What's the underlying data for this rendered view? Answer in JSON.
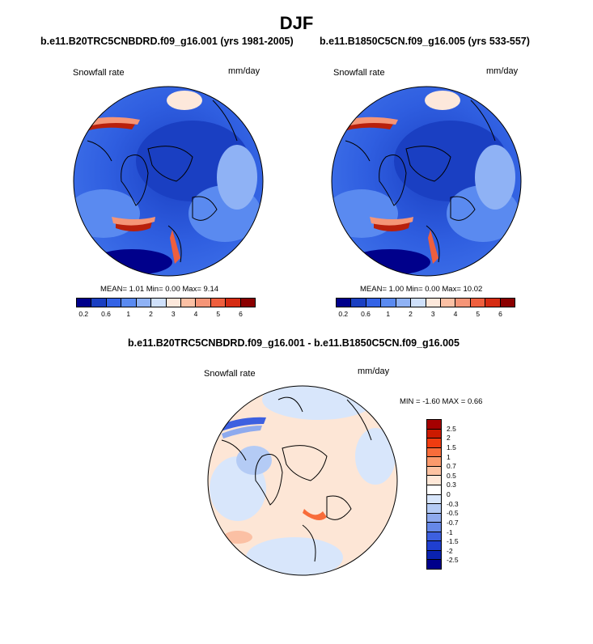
{
  "title": "DJF",
  "panels": [
    {
      "title": "b.e11.B20TRC5CNBDRD.f09_g16.001 (yrs 1981-2005)",
      "var_label": "Snowfall rate",
      "units": "mm/day",
      "stats": "MEAN=   1.01  Min=   0.00  Max=   9.14"
    },
    {
      "title": "b.e11.B1850C5CN.f09_g16.005 (yrs 533-557)",
      "var_label": "Snowfall rate",
      "units": "mm/day",
      "stats": "MEAN=   1.00  Min=   0.00  Max=   10.02"
    }
  ],
  "diff": {
    "title": "b.e11.B20TRC5CNBDRD.f09_g16.001 - b.e11.B1850C5CN.f09_g16.005",
    "var_label": "Snowfall rate",
    "units": "mm/day",
    "stats": "MIN =  -1.60 MAX =   0.66"
  },
  "colorbar": {
    "colors": [
      "#00008b",
      "#1a3fc2",
      "#3463e6",
      "#5a8af0",
      "#8fb2f5",
      "#cfe0fb",
      "#fde8db",
      "#fbc0a4",
      "#f59577",
      "#ef5f3e",
      "#d52b12",
      "#8b0000"
    ],
    "ticks": [
      "0.2",
      "0.6",
      "1",
      "2",
      "3",
      "4",
      "5",
      "6"
    ]
  },
  "diff_colorbar": {
    "colors": [
      "#a50000",
      "#cc1a00",
      "#f03c10",
      "#f86c3a",
      "#fb9a6c",
      "#fdc3a2",
      "#ffe8d8",
      "#ffffff",
      "#d8e6fb",
      "#b4cbf5",
      "#8eaaee",
      "#6688e8",
      "#3d60e0",
      "#1f3fd0",
      "#0a22b0",
      "#00008b"
    ],
    "ticks": [
      "2.5",
      "2",
      "1.5",
      "1",
      "0.7",
      "0.5",
      "0.3",
      "0",
      "-0.3",
      "-0.5",
      "-0.7",
      "-1",
      "-1.5",
      "-2",
      "-2.5"
    ]
  }
}
